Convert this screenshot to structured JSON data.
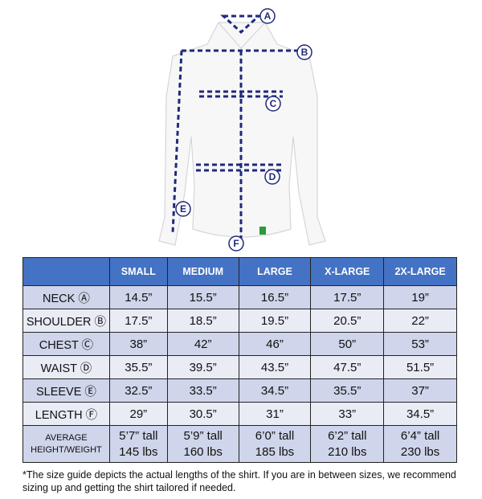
{
  "diagram": {
    "markers": [
      "A",
      "B",
      "C",
      "D",
      "E",
      "F"
    ],
    "line_color": "#1f2a7a"
  },
  "table": {
    "headers": [
      "",
      "SMALL",
      "MEDIUM",
      "LARGE",
      "X-LARGE",
      "2X-LARGE"
    ],
    "rows": [
      {
        "label": "NECK Ⓐ",
        "values": [
          "14.5”",
          "15.5”",
          "16.5”",
          "17.5”",
          "19”"
        ]
      },
      {
        "label": "SHOULDER Ⓑ",
        "values": [
          "17.5”",
          "18.5”",
          "19.5”",
          "20.5”",
          "22”"
        ]
      },
      {
        "label": "CHEST Ⓒ",
        "values": [
          "38”",
          "42”",
          "46”",
          "50”",
          "53”"
        ]
      },
      {
        "label": "WAIST Ⓓ",
        "values": [
          "35.5”",
          "39.5”",
          "43.5”",
          "47.5”",
          "51.5”"
        ]
      },
      {
        "label": "SLEEVE Ⓔ",
        "values": [
          "32.5”",
          "33.5”",
          "34.5”",
          "35.5”",
          "37”"
        ]
      },
      {
        "label": "LENGTH Ⓕ",
        "values": [
          "29”",
          "30.5”",
          "31”",
          "33”",
          "34.5”"
        ]
      }
    ],
    "average": {
      "label_line1": "AVERAGE",
      "label_line2": "HEIGHT/WEIGHT",
      "heights": [
        "5’7” tall",
        "5’9” tall",
        "6’0” tall",
        "6’2” tall",
        "6’4” tall"
      ],
      "weights": [
        "145 lbs",
        "160 lbs",
        "185 lbs",
        "210 lbs",
        "230 lbs"
      ]
    },
    "header_color": "#4472c4"
  },
  "note": "*The size guide depicts the actual lengths of the shirt. If you are in between sizes, we recommend sizing up and getting the shirt tailored if needed."
}
